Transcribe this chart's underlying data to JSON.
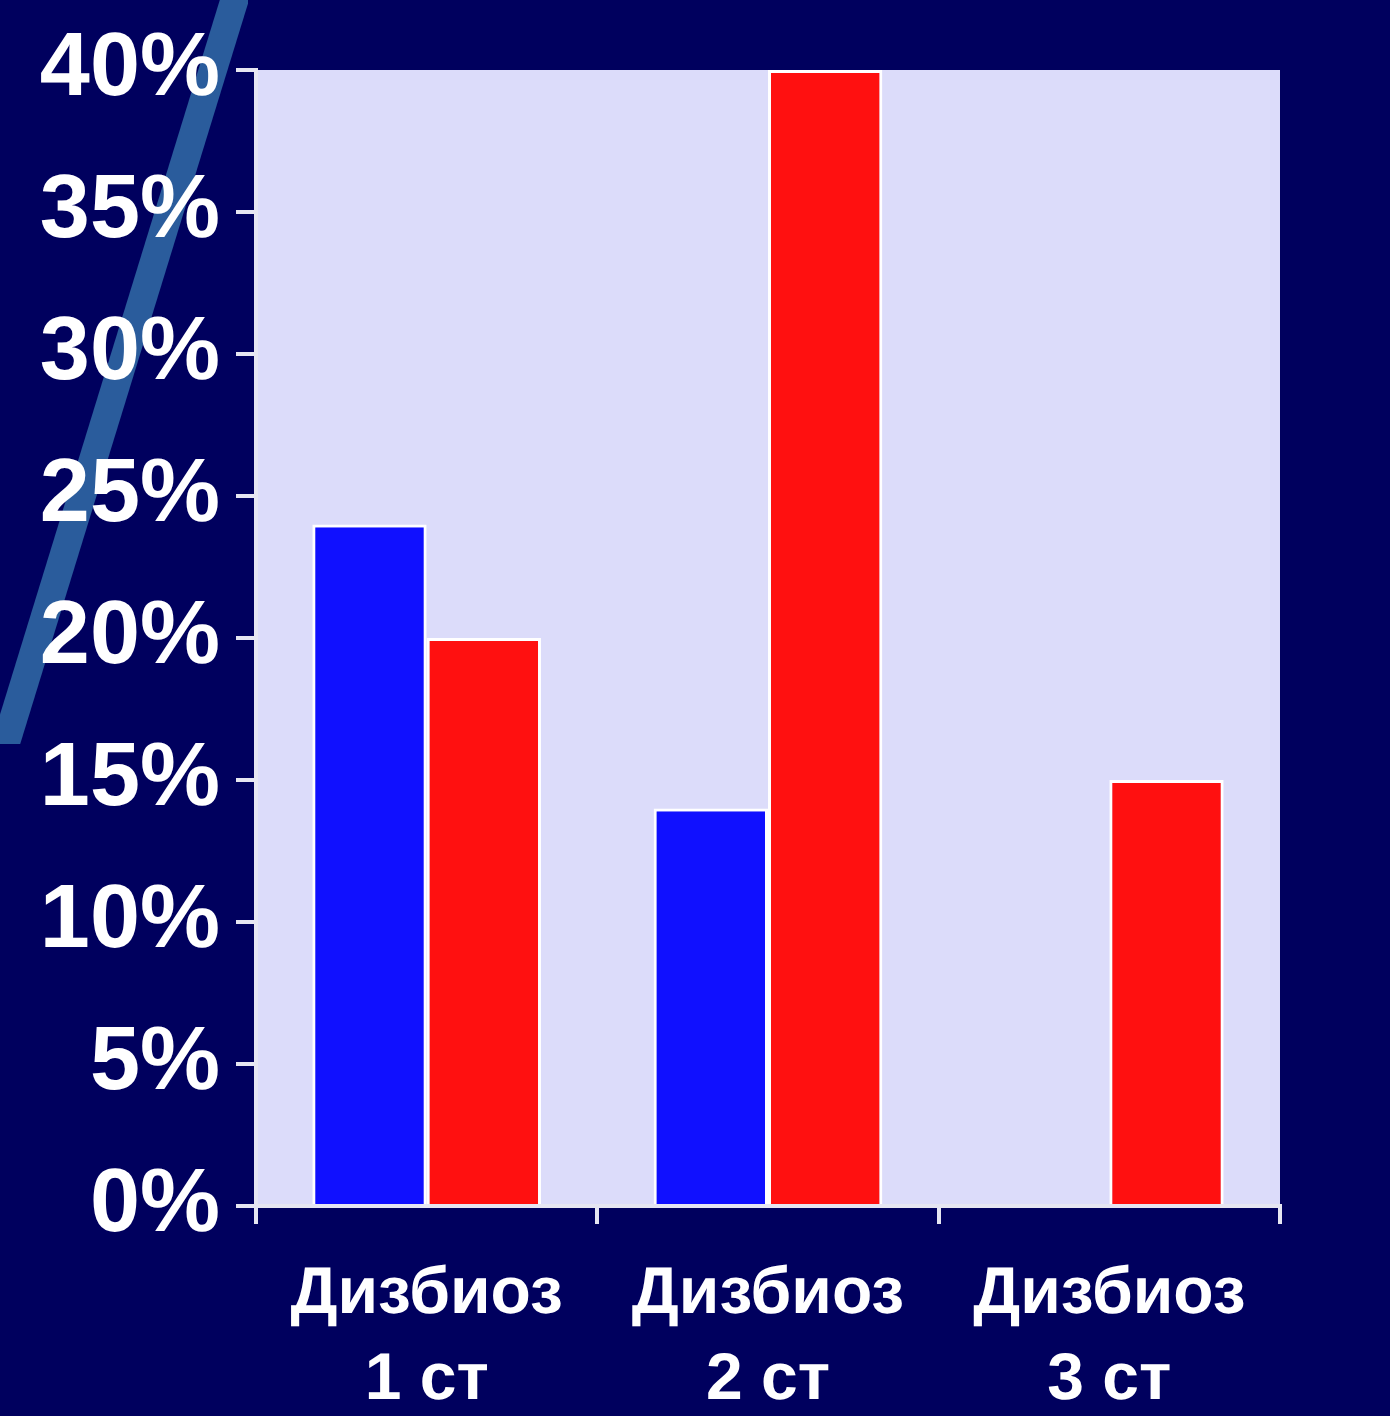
{
  "chart_data": {
    "type": "bar",
    "categories": [
      "Дизбиоз 1 ст",
      "Дизбиоз 2 ст",
      "Дизбиоз 3 ст"
    ],
    "series": [
      {
        "color": "#1010ff",
        "values": [
          24,
          14,
          0
        ]
      },
      {
        "color": "#ff1010",
        "values": [
          20,
          40,
          15
        ]
      }
    ],
    "ylim": [
      0,
      40
    ],
    "yticks": [
      {
        "value": 0,
        "label": "0%"
      },
      {
        "value": 5,
        "label": "5%"
      },
      {
        "value": 10,
        "label": "10%"
      },
      {
        "value": 15,
        "label": "15%"
      },
      {
        "value": 20,
        "label": "20%"
      },
      {
        "value": 25,
        "label": "25%"
      },
      {
        "value": 30,
        "label": "30%"
      },
      {
        "value": 35,
        "label": "35%"
      },
      {
        "value": 40,
        "label": "40%"
      }
    ],
    "grid": false,
    "legend": false
  }
}
